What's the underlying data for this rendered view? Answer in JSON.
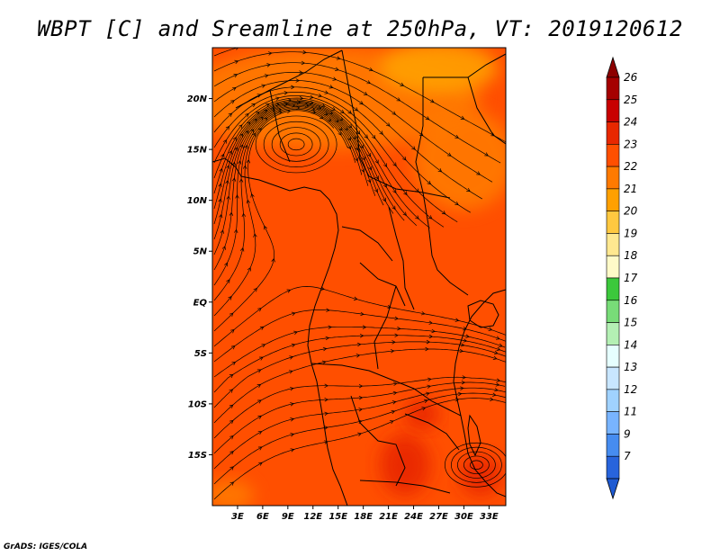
{
  "title": "WBPT [C] and Sreamline at 250hPa, VT: 2019120612",
  "credit": "GrADS: IGES/COLA",
  "map": {
    "lon_range": [
      0,
      35
    ],
    "lat_range": [
      -20,
      25
    ],
    "lat_ticks": [
      {
        "value": 20,
        "label": "20N"
      },
      {
        "value": 15,
        "label": "15N"
      },
      {
        "value": 10,
        "label": "10N"
      },
      {
        "value": 5,
        "label": "5N"
      },
      {
        "value": 0,
        "label": "EQ"
      },
      {
        "value": -5,
        "label": "5S"
      },
      {
        "value": -10,
        "label": "10S"
      },
      {
        "value": -15,
        "label": "15S"
      }
    ],
    "lon_ticks": [
      {
        "value": 3,
        "label": "3E"
      },
      {
        "value": 6,
        "label": "6E"
      },
      {
        "value": 9,
        "label": "9E"
      },
      {
        "value": 12,
        "label": "12E"
      },
      {
        "value": 15,
        "label": "15E"
      },
      {
        "value": 18,
        "label": "18E"
      },
      {
        "value": 21,
        "label": "21E"
      },
      {
        "value": 24,
        "label": "24E"
      },
      {
        "value": 27,
        "label": "27E"
      },
      {
        "value": 30,
        "label": "30E"
      },
      {
        "value": 33,
        "label": "33E"
      }
    ],
    "base_field_color": "#ff4f00",
    "field_regions": [
      {
        "level": 22,
        "color": "#ff7a00",
        "lon": 14,
        "lat": 20,
        "rx": 18,
        "ry": 5
      },
      {
        "level": 21,
        "color": "#ffa000",
        "lon": 27,
        "lat": 23,
        "rx": 7,
        "ry": 2.5
      },
      {
        "level": 22,
        "color": "#ff7a00",
        "lon": 30,
        "lat": 14,
        "rx": 6,
        "ry": 5
      },
      {
        "level": 22,
        "color": "#ff7a00",
        "lon": 2,
        "lat": -19,
        "rx": 3,
        "ry": 1.5
      },
      {
        "level": 24,
        "color": "#e82800",
        "lon": 23,
        "lat": -16,
        "rx": 3,
        "ry": 3
      },
      {
        "level": 24,
        "color": "#e82800",
        "lon": 32,
        "lat": -17,
        "rx": 2.5,
        "ry": 2
      },
      {
        "level": 24,
        "color": "#e82800",
        "lon": 25,
        "lat": -11,
        "rx": 2,
        "ry": 1.5
      }
    ],
    "vortices": [
      {
        "lon": 10,
        "lat": 15.5
      },
      {
        "lon": 31.5,
        "lat": -16
      }
    ]
  },
  "colorbar": {
    "levels": [
      {
        "label": "26",
        "color": "#a50000"
      },
      {
        "label": "25",
        "color": "#c80000"
      },
      {
        "label": "24",
        "color": "#e82800"
      },
      {
        "label": "23",
        "color": "#ff4f00"
      },
      {
        "label": "22",
        "color": "#ff7a00"
      },
      {
        "label": "21",
        "color": "#ffa000"
      },
      {
        "label": "20",
        "color": "#ffc840"
      },
      {
        "label": "19",
        "color": "#ffe890"
      },
      {
        "label": "18",
        "color": "#fffac8"
      },
      {
        "label": "17",
        "color": "#3cc83c"
      },
      {
        "label": "16",
        "color": "#78dc78"
      },
      {
        "label": "15",
        "color": "#b4f0b4"
      },
      {
        "label": "14",
        "color": "#e6ffff"
      },
      {
        "label": "13",
        "color": "#c8e6ff"
      },
      {
        "label": "12",
        "color": "#a0d2ff"
      },
      {
        "label": "11",
        "color": "#78b4ff"
      },
      {
        "label": "9",
        "color": "#468cf0"
      },
      {
        "label": "7",
        "color": "#2864dc"
      }
    ],
    "top_arrow_color": "#8c0000",
    "bottom_arrow_color": "#1e5ad2"
  }
}
